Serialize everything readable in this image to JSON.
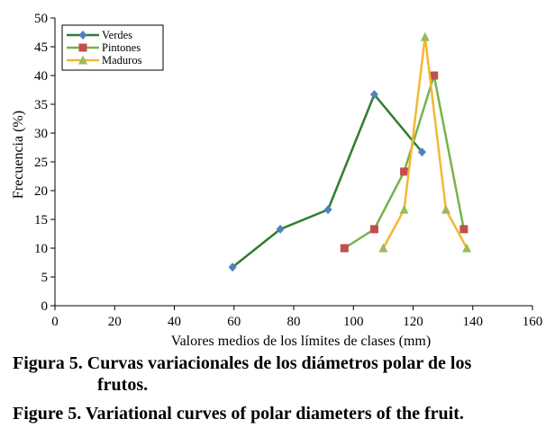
{
  "chart_data": {
    "type": "line",
    "title": "",
    "xlabel": "Valores medios de los límites de clases (mm)",
    "ylabel": "Frecuencia (%)",
    "xlim": [
      0,
      160
    ],
    "ylim": [
      0,
      50
    ],
    "xticks": [
      0,
      20,
      40,
      60,
      80,
      100,
      120,
      140,
      160
    ],
    "yticks": [
      0,
      5,
      10,
      15,
      20,
      25,
      30,
      35,
      40,
      45,
      50
    ],
    "grid": false,
    "legend_position": "top-left",
    "series": [
      {
        "name": "Verdes",
        "color": "#2e7d32",
        "marker": "diamond",
        "marker_color": "#4f81bd",
        "points": [
          [
            59.5,
            6.7
          ],
          [
            75.5,
            13.3
          ],
          [
            91.5,
            16.7
          ],
          [
            107,
            36.7
          ],
          [
            123,
            26.7
          ]
        ]
      },
      {
        "name": "Pintones",
        "color": "#77b34a",
        "marker": "square",
        "marker_color": "#c0504d",
        "points": [
          [
            97,
            10
          ],
          [
            107,
            13.3
          ],
          [
            117,
            23.3
          ],
          [
            127,
            40
          ],
          [
            137,
            13.3
          ]
        ]
      },
      {
        "name": "Maduros",
        "color": "#f5b730",
        "marker": "triangle",
        "marker_color": "#9bbb59",
        "points": [
          [
            110,
            10
          ],
          [
            117,
            16.7
          ],
          [
            124,
            46.7
          ],
          [
            131,
            16.7
          ],
          [
            138,
            10
          ]
        ]
      }
    ]
  },
  "caption": {
    "es_line1": "Figura 5. Curvas variacionales de los diámetros polar de los",
    "es_line2": "frutos.",
    "en": "Figure 5. Variational curves of polar diameters of the fruit."
  }
}
